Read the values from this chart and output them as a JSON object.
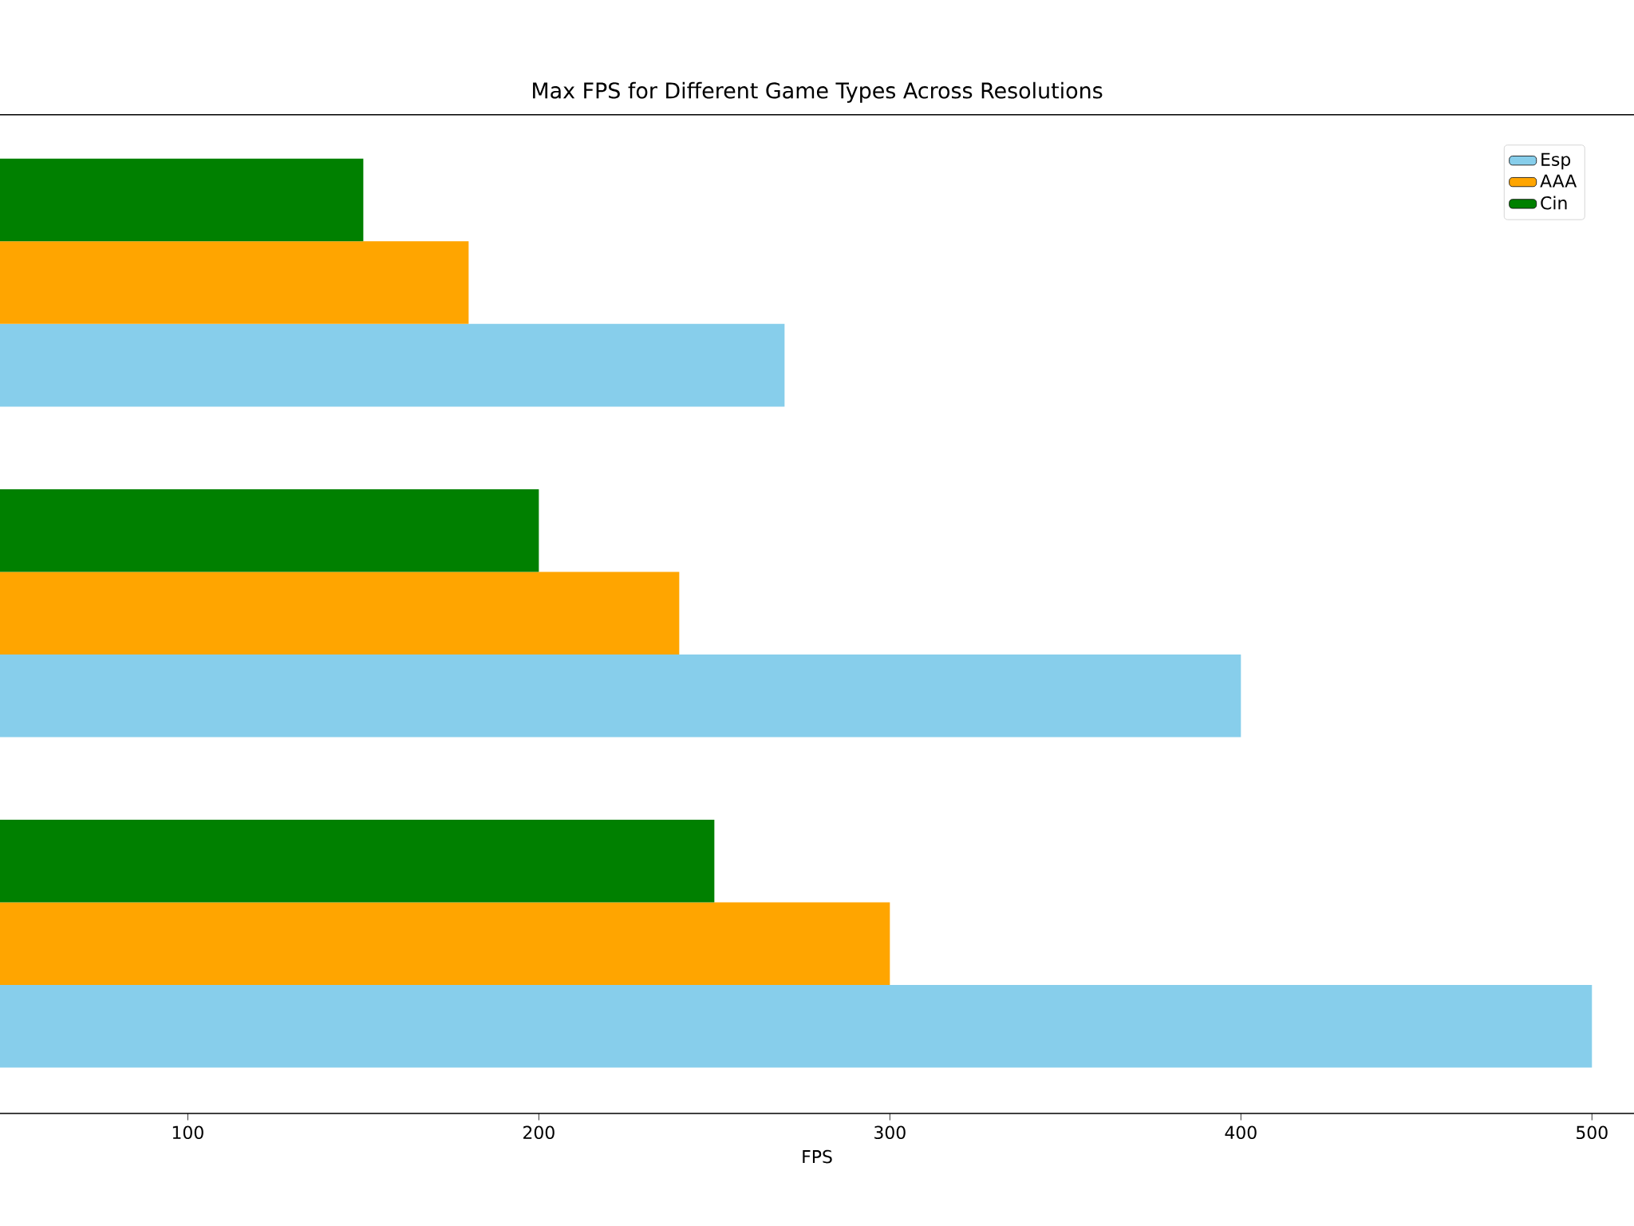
{
  "chart_data": {
    "type": "bar",
    "orientation": "horizontal",
    "title": "Max FPS for Different Game Types Across Resolutions",
    "xlabel": "FPS",
    "categories": [
      null,
      null,
      null
    ],
    "series": [
      {
        "name": "Esp",
        "color": "#87ceeb",
        "values": [
          270,
          400,
          500
        ]
      },
      {
        "name": "AAA",
        "color": "#ffa500",
        "values": [
          180,
          240,
          300
        ]
      },
      {
        "name": "Cin",
        "color": "#008000",
        "values": [
          150,
          200,
          250
        ]
      }
    ],
    "xlim": [
      46.5,
      512
    ],
    "xticks": [
      100,
      200,
      300,
      400,
      500
    ],
    "tick_labels": "x",
    "legend": "top right",
    "grid": false
  }
}
